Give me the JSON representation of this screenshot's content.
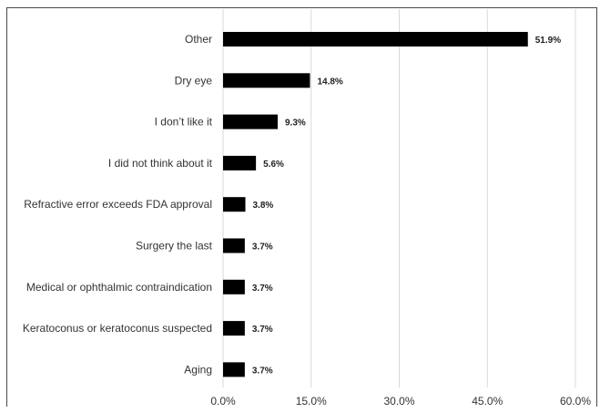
{
  "chart_data": {
    "type": "bar",
    "orientation": "horizontal",
    "categories": [
      "Other",
      "Dry eye",
      "I don’t like it",
      "I did not think about it",
      "Refractive error exceeds FDA approval",
      "Surgery the last",
      "Medical or ophthalmic contraindication",
      "Keratoconus or keratoconus suspected",
      "Aging"
    ],
    "values": [
      51.9,
      14.8,
      9.3,
      5.6,
      3.8,
      3.7,
      3.7,
      3.7,
      3.7
    ],
    "data_labels": [
      "51.9%",
      "14.8%",
      "9.3%",
      "5.6%",
      "3.8%",
      "3.7%",
      "3.7%",
      "3.7%",
      "3.7%"
    ],
    "xlim": [
      0,
      60
    ],
    "xticks": [
      0,
      15,
      30,
      45,
      60
    ],
    "xtick_labels": [
      "0.0%",
      "15.0%",
      "30.0%",
      "45.0%",
      "60.0%"
    ],
    "grid": "vertical",
    "bar_color": "#000000",
    "grid_color": "#d9d9d9"
  }
}
